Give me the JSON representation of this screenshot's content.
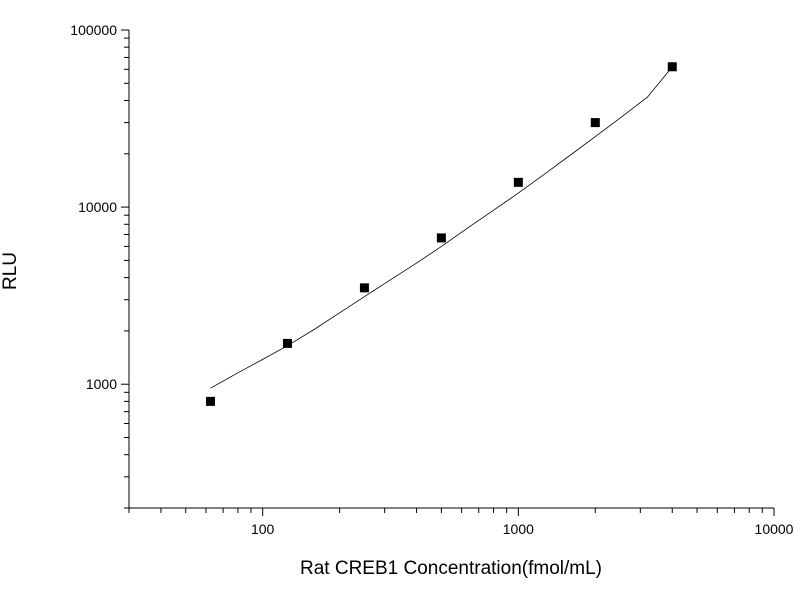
{
  "chart_data": {
    "type": "scatter",
    "title": "",
    "xlabel": "Rat CREB1 Concentration(fmol/mL)",
    "ylabel": "RLU",
    "x_scale": "log",
    "y_scale": "log",
    "xlim": [
      30,
      10000
    ],
    "ylim": [
      200,
      100000
    ],
    "x_ticks": [
      {
        "value": 100,
        "label": "100"
      },
      {
        "value": 1000,
        "label": "1000"
      },
      {
        "value": 10000,
        "label": "10000"
      }
    ],
    "y_ticks": [
      {
        "value": 1000,
        "label": "1000"
      },
      {
        "value": 10000,
        "label": "10000"
      },
      {
        "value": 100000,
        "label": "100000"
      }
    ],
    "grid": false,
    "series": [
      {
        "x": [
          62.5,
          125,
          250,
          500,
          1000,
          2000,
          4000
        ],
        "y": [
          800,
          1700,
          3500,
          6700,
          13800,
          30000,
          62000
        ]
      }
    ],
    "fit_curve": {
      "x": [
        62.5,
        80,
        100,
        125,
        160,
        200,
        250,
        320,
        400,
        500,
        640,
        800,
        1000,
        1300,
        1600,
        2000,
        2500,
        3200,
        4000
      ],
      "y": [
        950,
        1160,
        1380,
        1650,
        2050,
        2530,
        3120,
        3930,
        4830,
        6000,
        7700,
        9600,
        12000,
        15800,
        19700,
        25000,
        31800,
        41800,
        62000
      ]
    },
    "marker_color": "#000000",
    "line_color": "#000000"
  }
}
